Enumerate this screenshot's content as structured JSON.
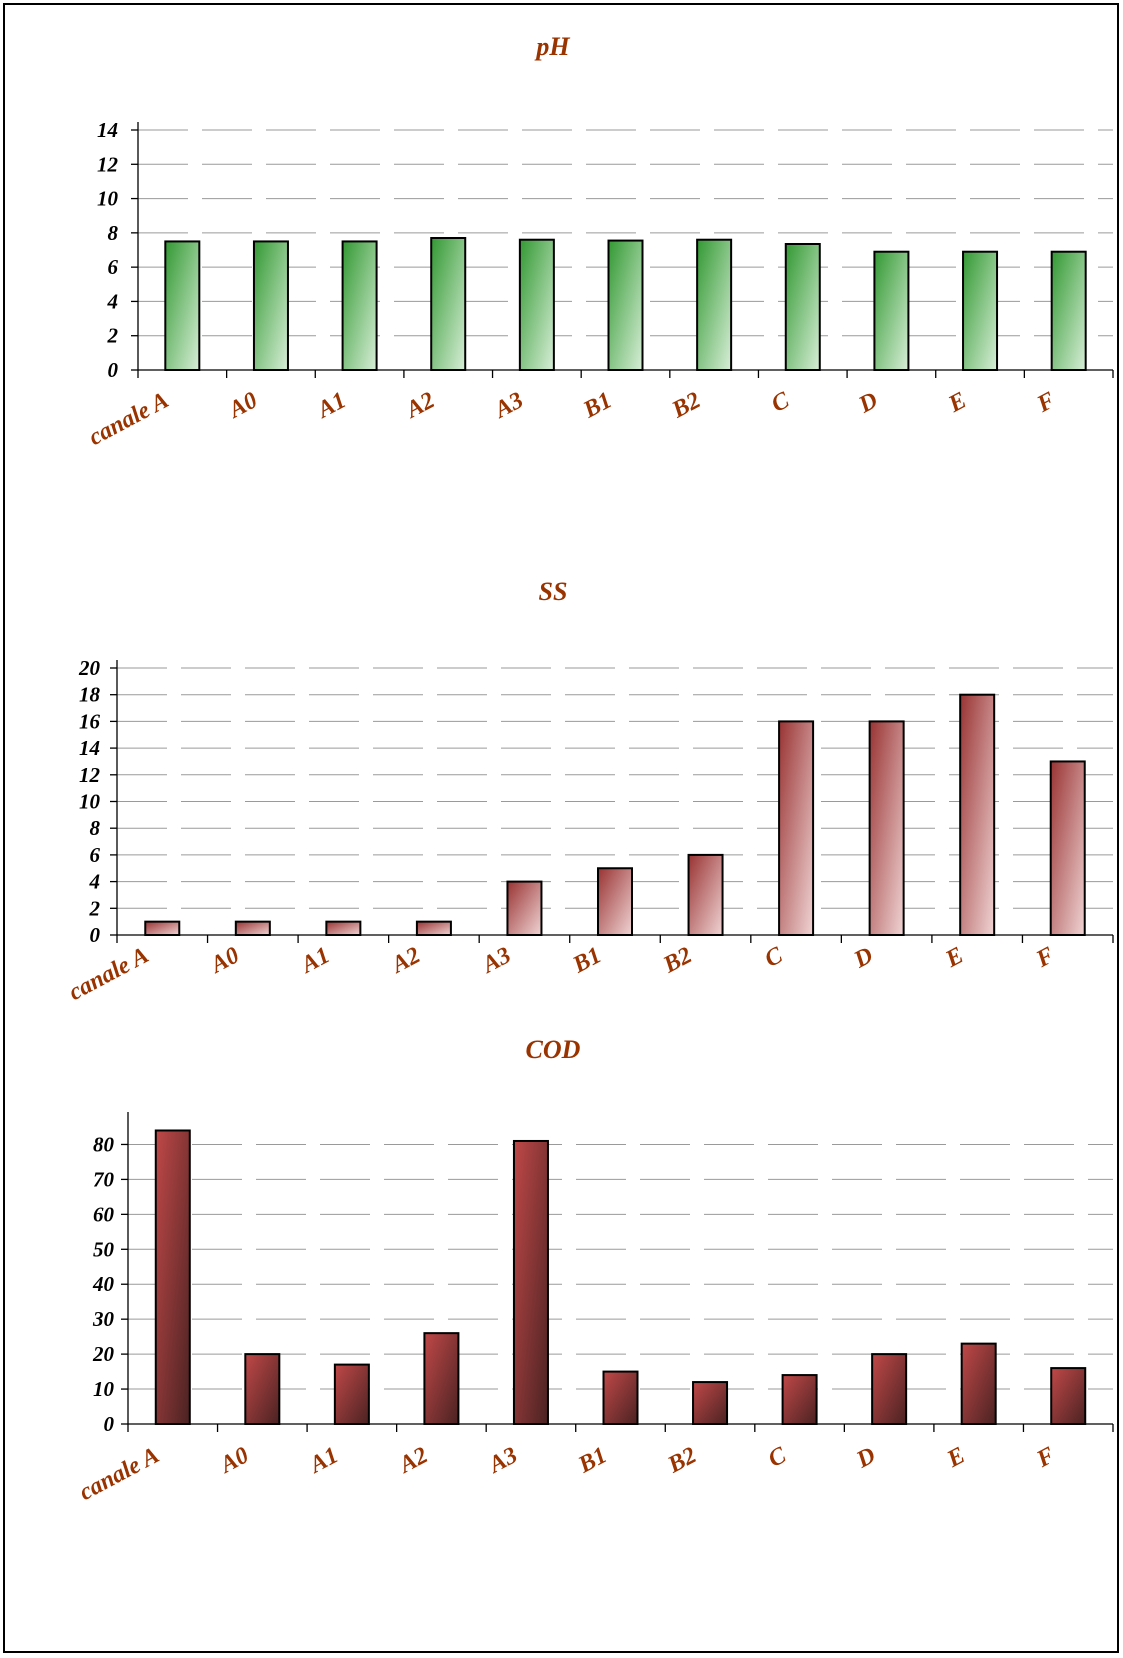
{
  "chart_data": [
    {
      "type": "bar",
      "title": "pH",
      "categories": [
        "canale A",
        "A0",
        "A1",
        "A2",
        "A3",
        "B1",
        "B2",
        "C",
        "D",
        "E",
        "F"
      ],
      "values": [
        7.5,
        7.5,
        7.5,
        7.7,
        7.6,
        7.55,
        7.6,
        7.35,
        6.9,
        6.9,
        6.9
      ],
      "ylim": [
        0,
        14
      ],
      "yticks": [
        "0",
        "2",
        "4",
        "6",
        "8",
        "10",
        "12",
        "14"
      ],
      "grid": true,
      "colors": {
        "top": "#339933",
        "bottom": "#d8eed8"
      }
    },
    {
      "type": "bar",
      "title": "SS",
      "categories": [
        "canale A",
        "A0",
        "A1",
        "A2",
        "A3",
        "B1",
        "B2",
        "C",
        "D",
        "E",
        "F"
      ],
      "values": [
        1,
        1,
        1,
        1,
        4,
        5,
        6,
        16,
        16,
        18,
        13
      ],
      "ylim": [
        0,
        20
      ],
      "yticks": [
        "0",
        "2",
        "4",
        "6",
        "8",
        "10",
        "12",
        "14",
        "16",
        "18",
        "20"
      ],
      "grid": true,
      "colors": {
        "top": "#993333",
        "bottom": "#f0d4d4"
      }
    },
    {
      "type": "bar",
      "title": "COD",
      "categories": [
        "canale A",
        "A0",
        "A1",
        "A2",
        "A3",
        "B1",
        "B2",
        "C",
        "D",
        "E",
        "F"
      ],
      "values": [
        84,
        20,
        17,
        26,
        81,
        15,
        12,
        14,
        20,
        23,
        16
      ],
      "ylim": [
        0,
        87
      ],
      "yticks": [
        "0",
        "10",
        "20",
        "30",
        "40",
        "50",
        "60",
        "70",
        "80"
      ],
      "grid": true,
      "colors": {
        "top": "#c04848",
        "bottom": "#4a2222"
      }
    }
  ]
}
